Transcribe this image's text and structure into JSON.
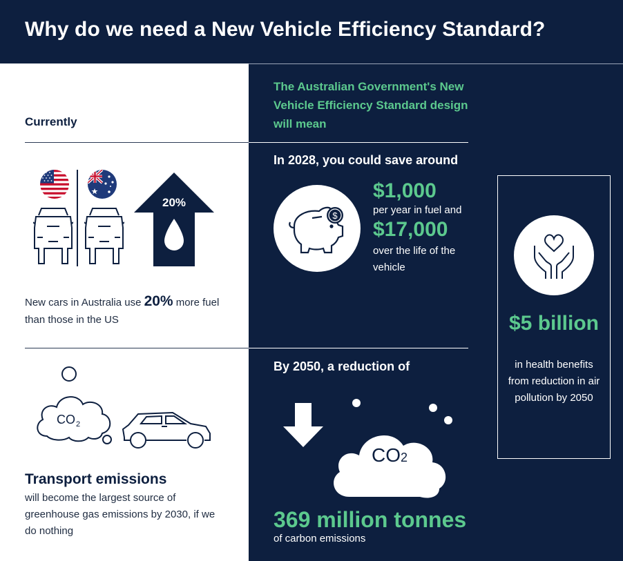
{
  "header": {
    "title": "Why do we need a New Vehicle Efficiency Standard?"
  },
  "left": {
    "currently_label": "Currently",
    "fuel": {
      "arrow_percent": "20%",
      "text_before": "New cars in Australia use ",
      "text_highlight": "20%",
      "text_after": " more fuel than those in the US"
    },
    "transport": {
      "title": "Transport emissions",
      "body": "will become the largest source of greenhouse gas emissions by 2030, if we do nothing"
    },
    "co2_label": "CO",
    "co2_sub": "2"
  },
  "right": {
    "govt_title": "The Australian Government's New Vehicle Efficiency Standard design will mean",
    "savings": {
      "heading": "In 2028, you could save around",
      "amount_year": "$1,000",
      "per_year_text": "per year in fuel and",
      "amount_life": "$17,000",
      "life_text": "over the life of the vehicle"
    },
    "health": {
      "amount": "$5 billion",
      "text": "in health benefits from reduction in air pollution by 2050"
    },
    "reduction": {
      "heading": "By 2050, a reduction of",
      "amount": "369 million tonnes",
      "sub": "of carbon emissions",
      "co2_label": "CO",
      "co2_sub": "2"
    }
  },
  "colors": {
    "navy": "#0d1f3f",
    "green": "#5cc98e",
    "white": "#ffffff"
  },
  "icons": [
    "us-flag-icon",
    "australia-flag-icon",
    "car-front-icon",
    "up-arrow-icon",
    "fuel-drop-icon",
    "piggy-bank-icon",
    "dollar-coin-icon",
    "heart-hands-icon",
    "down-arrow-icon",
    "co2-cloud-icon",
    "suv-car-icon"
  ]
}
